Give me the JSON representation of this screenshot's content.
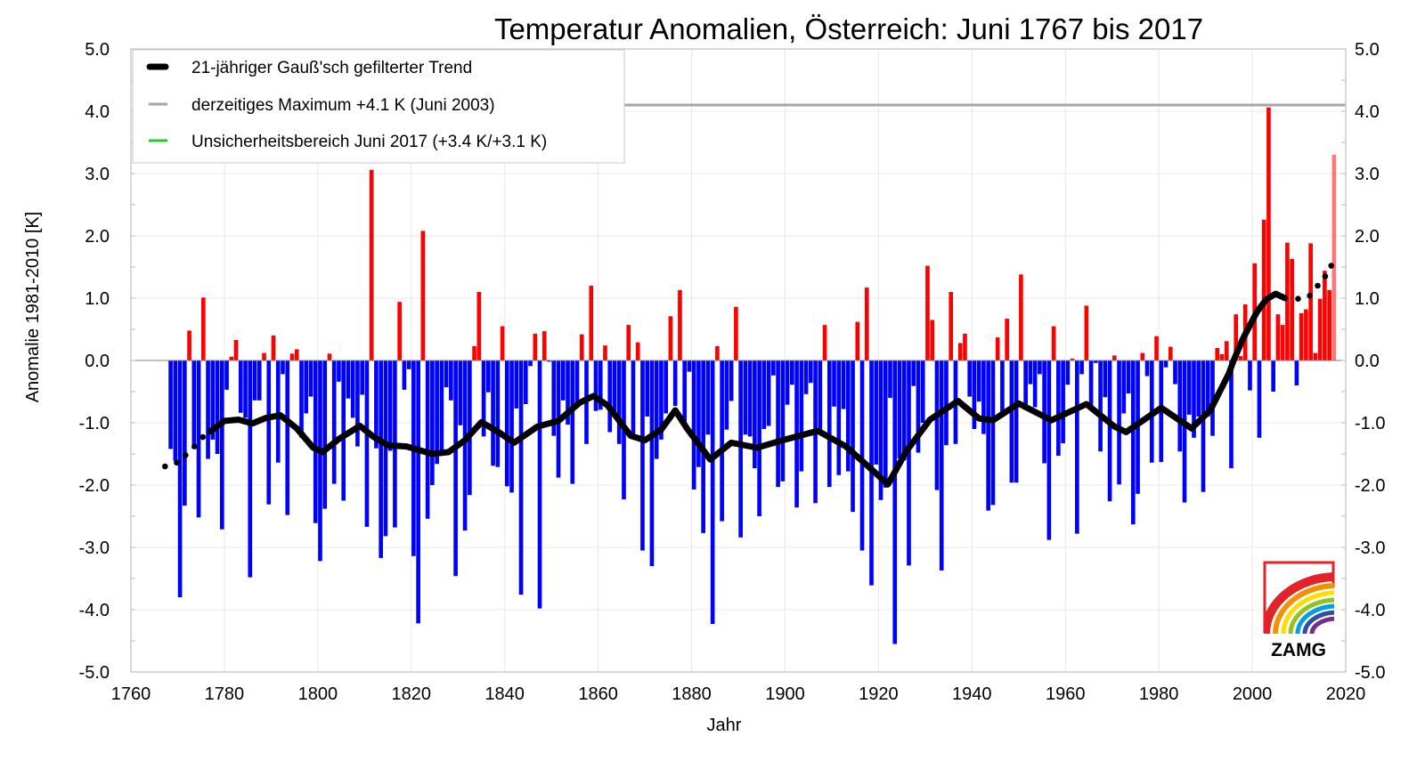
{
  "chart_data": {
    "type": "bar",
    "title": "Temperatur Anomalien, Österreich: Juni 1767 bis 2017",
    "xlabel": "Jahr",
    "ylabel": "Anomalie 1981-2010 [K]",
    "xlim": [
      1760,
      2020
    ],
    "ylim": [
      -5.0,
      5.0
    ],
    "x_ticks": [
      "1760",
      "1780",
      "1800",
      "1820",
      "1840",
      "1860",
      "1880",
      "1900",
      "1920",
      "1940",
      "1960",
      "1980",
      "2000",
      "2020"
    ],
    "y_ticks": [
      "5.0",
      "4.0",
      "3.0",
      "2.0",
      "1.0",
      "0.0",
      "-1.0",
      "-2.0",
      "-3.0",
      "-4.0",
      "-5.0"
    ],
    "grid": true,
    "legend_position": "top-left",
    "legend": [
      {
        "label": "21-jähriger Gauß'sch gefilterter Trend",
        "color": "#000000"
      },
      {
        "label": "derzeitiges Maximum +4.1 K (Juni 2003)",
        "color": "#a6a6a6"
      },
      {
        "label": "Unsicherheitsbereich Juni 2017 (+3.4 K/+3.1 K)",
        "color": "#22cc22"
      }
    ],
    "colors": {
      "positive": "#ff0000",
      "negative": "#0000ff",
      "latest": "#ff7878",
      "trend": "#000000",
      "maximum": "#a6a6a6"
    },
    "maximum_value": 4.1,
    "first_year": 1768,
    "values": [
      -1.42,
      -1.61,
      -3.8,
      -2.33,
      0.48,
      -1.42,
      -2.52,
      1.01,
      -1.58,
      -1.27,
      -1.5,
      -2.71,
      -0.47,
      0.06,
      0.33,
      -0.84,
      -0.92,
      -3.48,
      -0.64,
      -0.64,
      0.12,
      -2.31,
      0.4,
      -1.64,
      -0.22,
      -2.48,
      0.11,
      0.18,
      -1.24,
      -0.85,
      -0.58,
      -2.61,
      -3.22,
      -2.38,
      0.11,
      -1.98,
      -0.34,
      -2.25,
      -0.61,
      -0.92,
      -1.38,
      -0.55,
      -2.67,
      3.06,
      -1.41,
      -3.17,
      -2.82,
      -1.45,
      -2.68,
      0.94,
      -0.47,
      -0.14,
      -3.14,
      -4.22,
      2.08,
      -2.54,
      -2.0,
      -1.66,
      -1.44,
      -0.43,
      -0.64,
      -3.46,
      -1.04,
      -2.73,
      -2.16,
      0.23,
      1.1,
      -1.22,
      -0.51,
      -1.69,
      -1.71,
      0.55,
      -2.02,
      -2.12,
      -0.77,
      -3.76,
      -0.7,
      -0.09,
      0.43,
      -3.98,
      0.47,
      -0.02,
      -1.21,
      -1.88,
      -0.64,
      -1.03,
      -1.98,
      -0.7,
      0.42,
      -1.34,
      1.2,
      -0.81,
      -0.79,
      0.24,
      -1.15,
      -0.85,
      -1.34,
      -2.23,
      0.57,
      -1.2,
      0.29,
      -3.05,
      -0.9,
      -3.3,
      -1.58,
      -1.27,
      -0.85,
      0.71,
      -0.73,
      1.13,
      -1.06,
      -0.18,
      -2.07,
      -1.71,
      -2.77,
      -1.19,
      -4.23,
      0.23,
      -2.58,
      -1.11,
      -0.65,
      0.86,
      -2.84,
      -1.19,
      -1.22,
      -1.73,
      -2.5,
      -1.1,
      -1.05,
      -0.24,
      -2.03,
      -1.94,
      -0.71,
      -0.39,
      -2.36,
      -1.78,
      -0.54,
      -0.36,
      -2.29,
      -1.13,
      0.57,
      -2.03,
      -0.74,
      -1.84,
      -0.78,
      -1.78,
      -2.43,
      0.62,
      -3.05,
      1.17,
      -3.61,
      -1.67,
      -2.24,
      -2.04,
      -0.6,
      -4.55,
      -1.57,
      -1.6,
      -3.29,
      -0.41,
      -1.48,
      -1.0,
      1.52,
      0.65,
      -2.08,
      -3.37,
      -1.36,
      1.1,
      -1.34,
      0.28,
      0.43,
      -0.58,
      -1.1,
      -0.66,
      -1.18,
      -2.41,
      -2.32,
      0.37,
      -0.89,
      0.67,
      -1.96,
      -1.96,
      1.38,
      -0.79,
      -0.38,
      -0.75,
      -0.22,
      -1.65,
      -2.88,
      0.55,
      -1.53,
      -1.33,
      -0.39,
      0.03,
      -2.78,
      -0.22,
      0.88,
      -0.79,
      -0.04,
      -1.46,
      -0.59,
      -2.26,
      0.08,
      -1.99,
      -0.85,
      -0.53,
      -2.63,
      -2.14,
      0.12,
      -0.25,
      -1.64,
      0.39,
      -1.63,
      -0.11,
      0.22,
      -0.38,
      -1.46,
      -2.28,
      -0.87,
      -1.24,
      -0.9,
      -2.11,
      -0.9,
      -1.21,
      0.2,
      0.1,
      0.31,
      -1.73,
      0.74,
      0.07,
      0.9,
      -0.48,
      1.56,
      -1.24,
      2.26,
      4.06,
      -0.5,
      0.74,
      0.57,
      1.89,
      1.63,
      -0.4,
      0.76,
      0.82,
      1.88,
      0.12,
      0.99,
      1.44,
      1.13,
      3.3
    ],
    "trend": [
      [
        1777,
        -1.14
      ],
      [
        1780,
        -0.97
      ],
      [
        1783,
        -0.95
      ],
      [
        1786,
        -1.01
      ],
      [
        1789,
        -0.92
      ],
      [
        1792,
        -0.88
      ],
      [
        1795.5,
        -1.09
      ],
      [
        1799,
        -1.4
      ],
      [
        1801,
        -1.47
      ],
      [
        1804.5,
        -1.26
      ],
      [
        1809,
        -1.05
      ],
      [
        1812,
        -1.23
      ],
      [
        1815,
        -1.36
      ],
      [
        1819,
        -1.38
      ],
      [
        1824.5,
        -1.5
      ],
      [
        1828,
        -1.47
      ],
      [
        1831.5,
        -1.28
      ],
      [
        1835,
        -0.99
      ],
      [
        1838.5,
        -1.14
      ],
      [
        1842,
        -1.32
      ],
      [
        1847,
        -1.06
      ],
      [
        1851.5,
        -0.97
      ],
      [
        1856,
        -0.68
      ],
      [
        1859,
        -0.57
      ],
      [
        1862,
        -0.72
      ],
      [
        1867,
        -1.21
      ],
      [
        1870,
        -1.28
      ],
      [
        1873.5,
        -1.11
      ],
      [
        1876.5,
        -0.8
      ],
      [
        1879,
        -1.09
      ],
      [
        1884,
        -1.59
      ],
      [
        1888.5,
        -1.32
      ],
      [
        1894,
        -1.4
      ],
      [
        1900,
        -1.27
      ],
      [
        1907,
        -1.13
      ],
      [
        1913,
        -1.38
      ],
      [
        1919,
        -1.78
      ],
      [
        1922,
        -1.99
      ],
      [
        1926,
        -1.45
      ],
      [
        1931,
        -0.95
      ],
      [
        1937,
        -0.65
      ],
      [
        1941.5,
        -0.93
      ],
      [
        1944.5,
        -0.96
      ],
      [
        1950,
        -0.69
      ],
      [
        1957,
        -0.96
      ],
      [
        1964.5,
        -0.7
      ],
      [
        1970.5,
        -1.06
      ],
      [
        1973,
        -1.15
      ],
      [
        1980.5,
        -0.76
      ],
      [
        1987,
        -1.09
      ],
      [
        1991,
        -0.8
      ],
      [
        1995,
        -0.21
      ],
      [
        1996,
        0.0
      ],
      [
        1998,
        0.35
      ],
      [
        2001,
        0.78
      ],
      [
        2003,
        0.98
      ],
      [
        2005,
        1.07
      ],
      [
        2007,
        1.0
      ]
    ],
    "trend_dotted_start": [
      [
        1767.3,
        -1.7
      ],
      [
        1769.8,
        -1.64
      ],
      [
        1771.7,
        -1.52
      ],
      [
        1773.6,
        -1.38
      ],
      [
        1775.4,
        -1.23
      ]
    ],
    "trend_dotted_end": [
      [
        2009.8,
        0.99
      ],
      [
        2012.3,
        1.04
      ],
      [
        2014,
        1.2
      ],
      [
        2015.6,
        1.35
      ],
      [
        2016.9,
        1.52
      ]
    ]
  },
  "logo": {
    "text": "ZAMG"
  }
}
